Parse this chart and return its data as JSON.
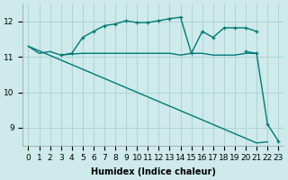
{
  "xlabel": "Humidex (Indice chaleur)",
  "bg_color": "#ceeaea",
  "grid_color": "#aed4d4",
  "line_color": "#007878",
  "xlim": [
    -0.5,
    23.5
  ],
  "ylim": [
    8.5,
    12.5
  ],
  "yticks": [
    9,
    10,
    11,
    12
  ],
  "xticks": [
    0,
    1,
    2,
    3,
    4,
    5,
    6,
    7,
    8,
    9,
    10,
    11,
    12,
    13,
    14,
    15,
    16,
    17,
    18,
    19,
    20,
    21,
    22,
    23
  ],
  "line_diagonal": {
    "x": [
      0,
      1,
      2,
      3,
      4,
      5,
      6,
      7,
      8,
      9,
      10,
      11,
      12,
      13,
      14,
      15,
      16,
      17,
      18,
      19,
      20,
      21,
      22
    ],
    "y": [
      11.3,
      11.17,
      11.04,
      10.91,
      10.78,
      10.65,
      10.52,
      10.39,
      10.26,
      10.13,
      10.0,
      9.87,
      9.74,
      9.61,
      9.48,
      9.35,
      9.22,
      9.09,
      8.96,
      8.83,
      8.7,
      8.57,
      8.6
    ]
  },
  "line_flat": {
    "x": [
      0,
      1,
      2,
      3,
      4,
      5,
      6,
      7,
      8,
      9,
      10,
      11,
      12,
      13,
      14,
      15,
      16,
      17,
      18,
      19,
      20,
      21
    ],
    "y": [
      11.3,
      11.1,
      11.15,
      11.05,
      11.08,
      11.1,
      11.1,
      11.1,
      11.1,
      11.1,
      11.1,
      11.1,
      11.1,
      11.1,
      11.05,
      11.1,
      11.1,
      11.05,
      11.05,
      11.05,
      11.1,
      11.1
    ]
  },
  "line_upper": {
    "x": [
      3,
      4,
      5,
      6,
      7,
      8,
      9,
      10,
      11,
      12,
      13,
      14,
      15,
      16,
      17,
      18,
      19,
      20,
      21
    ],
    "y": [
      11.05,
      11.1,
      11.55,
      11.72,
      11.88,
      11.93,
      12.02,
      11.97,
      11.97,
      12.02,
      12.08,
      12.12,
      11.1,
      11.72,
      11.55,
      11.82,
      11.82,
      11.82,
      11.72
    ]
  },
  "line_drop": {
    "x": [
      20,
      21,
      22,
      23
    ],
    "y": [
      11.15,
      11.1,
      9.1,
      8.62
    ]
  }
}
